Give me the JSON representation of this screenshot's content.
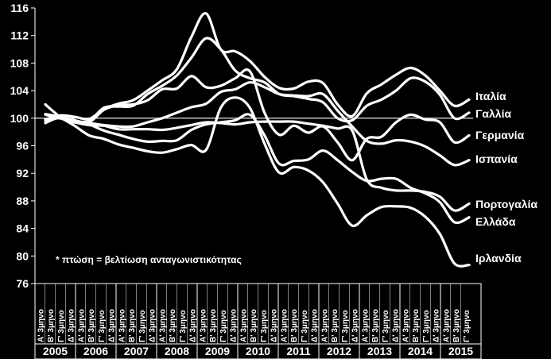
{
  "chart_data": {
    "type": "line",
    "ylim": [
      76,
      116
    ],
    "yticks": [
      76,
      80,
      84,
      88,
      92,
      96,
      100,
      104,
      108,
      112,
      116
    ],
    "quarter_labels": [
      "Α' 3μηνο",
      "Β' 3μηνο",
      "Γ' 3μηνο",
      "Δ' 3μηνο"
    ],
    "years": [
      "2005",
      "2006",
      "2007",
      "2008",
      "2009",
      "2010",
      "2011",
      "2012",
      "2013",
      "2014",
      "2015"
    ],
    "note": "* πτώση = βελτίωση ανταγωνιστικότητας",
    "reference_line": 100,
    "series": [
      {
        "name": "Ιταλία",
        "values": [
          99.8,
          100.4,
          100.2,
          99.9,
          101.3,
          102.1,
          102.6,
          104,
          105.5,
          107.1,
          111.8,
          115.2,
          110,
          109.7,
          108.3,
          106,
          104.4,
          104.3,
          105.3,
          105.1,
          102,
          100.3,
          103.6,
          104.9,
          106.3,
          107.3,
          106.2,
          104,
          101.8,
          102.7
        ]
      },
      {
        "name": "Γαλλία",
        "values": [
          99.8,
          100,
          99.6,
          99.6,
          101.5,
          101.7,
          101.8,
          103.5,
          104.7,
          106.2,
          108.8,
          111.6,
          110,
          106.9,
          105.8,
          105.2,
          103.5,
          103.2,
          102.8,
          102.3,
          100,
          99.7,
          101.8,
          102.7,
          104,
          105.8,
          105.3,
          103.4,
          100,
          100.8
        ]
      },
      {
        "name": "Γερμανία",
        "values": [
          100.5,
          100,
          99.4,
          99.4,
          101.2,
          101.9,
          102,
          102.6,
          104.2,
          104.3,
          106.1,
          104.5,
          104.7,
          105.8,
          106.8,
          100.8,
          97.6,
          98.9,
          97.9,
          98.8,
          96.5,
          93.9,
          97,
          97.3,
          99.4,
          100.5,
          99.8,
          99.4,
          96.5,
          97.5
        ]
      },
      {
        "name": "Ισπανία",
        "values": [
          99.6,
          100.3,
          99.6,
          99.3,
          99,
          98.8,
          98.8,
          99.4,
          100,
          100.8,
          101.6,
          102.1,
          103.8,
          104.2,
          105.2,
          104.5,
          103.5,
          103.3,
          103.2,
          103.5,
          101.1,
          98.8,
          96.7,
          96.3,
          96.8,
          96.6,
          95.9,
          94.6,
          93.2,
          93.9
        ]
      },
      {
        "name": "Πορτογαλία",
        "values": [
          99.3,
          100.1,
          99.4,
          99,
          98.9,
          98.4,
          98.4,
          98.4,
          98.3,
          98.6,
          99,
          99.4,
          99.3,
          99.1,
          99.4,
          99.5,
          99.5,
          99.5,
          99.2,
          98.9,
          98.5,
          98.2,
          91.1,
          89.9,
          89.5,
          89.5,
          89.3,
          88.6,
          86.6,
          87.6
        ]
      },
      {
        "name": "Ελλάδα",
        "values": [
          100.6,
          100.2,
          99.7,
          99.1,
          98.2,
          97.6,
          97,
          96.6,
          96.7,
          96.8,
          98.3,
          99.1,
          99.4,
          99.7,
          100.5,
          97.5,
          93.4,
          93.8,
          94,
          95.3,
          93.9,
          92.2,
          90.9,
          91.2,
          91.2,
          89.9,
          89.1,
          87.8,
          84.9,
          85.6
        ]
      },
      {
        "name": "Ιρλανδία",
        "values": [
          102,
          100.2,
          98.9,
          97.5,
          97,
          96.2,
          95.7,
          95.2,
          95,
          95.5,
          96.1,
          95.4,
          101.5,
          103,
          101.5,
          96.3,
          92.1,
          92.9,
          92.4,
          90.7,
          87.6,
          84.4,
          85.9,
          87.1,
          87.2,
          87,
          85.7,
          83.2,
          78.9,
          78.7
        ]
      }
    ]
  }
}
